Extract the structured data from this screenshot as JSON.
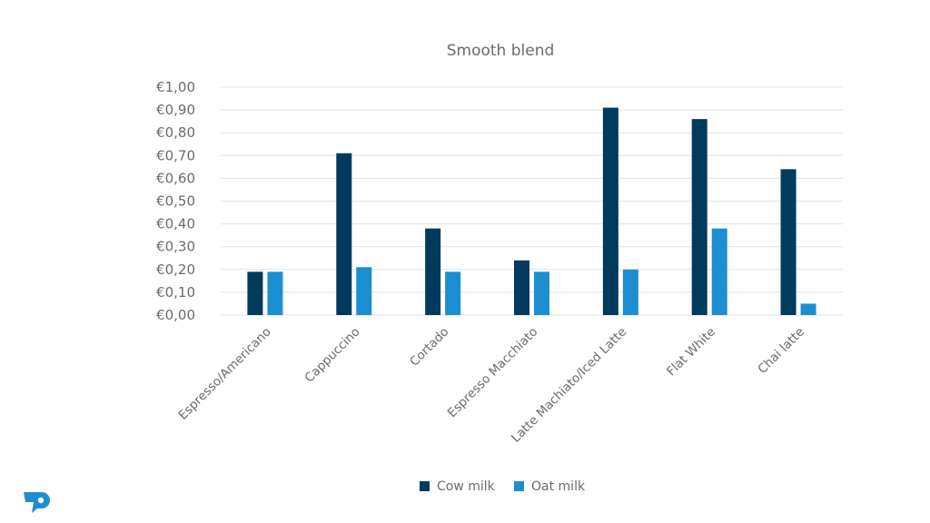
{
  "chart_data": {
    "type": "bar",
    "title": "Smooth blend",
    "xlabel": "",
    "ylabel": "",
    "categories": [
      "Espresso/Americano",
      "Cappuccino",
      "Cortado",
      "Espresso Macchiato",
      "Latte Machiato/Iced Latte",
      "Flat White",
      "Chai latte"
    ],
    "series": [
      {
        "name": "Cow milk",
        "color": "#003a5d",
        "values": [
          0.19,
          0.71,
          0.38,
          0.24,
          0.91,
          0.86,
          0.64
        ]
      },
      {
        "name": "Oat milk",
        "color": "#1b8fd2",
        "values": [
          0.19,
          0.21,
          0.19,
          0.19,
          0.2,
          0.38,
          0.05
        ]
      }
    ],
    "ylim": [
      0,
      1.0
    ],
    "yticks": [
      "€0,00",
      "€0,10",
      "€0,20",
      "€0,30",
      "€0,40",
      "€0,50",
      "€0,60",
      "€0,70",
      "€0,80",
      "€0,90",
      "€1,00"
    ],
    "grid": true,
    "legend_position": "bottom"
  },
  "logo": {
    "name": "brand-logo-icon",
    "color": "#1b8fd2"
  }
}
